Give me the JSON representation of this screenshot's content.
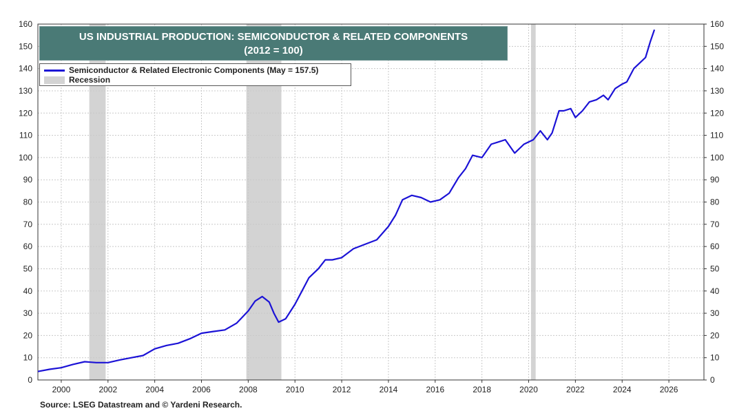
{
  "title_line1": "US INDUSTRIAL PRODUCTION: SEMICONDUCTOR & RELATED COMPONENTS",
  "title_line2": "(2012 = 100)",
  "legend": {
    "series_label": "Semiconductor & Related Electronic Components (May  = 157.5)",
    "recession_label": "Recession"
  },
  "source": "Source: LSEG Datastream and © Yardeni Research.",
  "colors": {
    "series": "#1b12d6",
    "recession": "#d3d3d3",
    "title_bg": "#4a7a76",
    "grid": "#c8c8c8"
  },
  "chart_data": {
    "type": "line",
    "title": "US INDUSTRIAL PRODUCTION: SEMICONDUCTOR & RELATED COMPONENTS",
    "subtitle": "(2012 = 100)",
    "xlim": [
      1999,
      2027.5
    ],
    "ylim": [
      0,
      160
    ],
    "x_ticks": [
      "2000",
      "2002",
      "2004",
      "2006",
      "2008",
      "2010",
      "2012",
      "2014",
      "2016",
      "2018",
      "2020",
      "2022",
      "2024",
      "2026"
    ],
    "y_ticks": [
      "0",
      "10",
      "20",
      "30",
      "40",
      "50",
      "60",
      "70",
      "80",
      "90",
      "100",
      "110",
      "120",
      "130",
      "140",
      "150",
      "160"
    ],
    "grid": true,
    "legend_position": "top-left",
    "recessions": [
      [
        2001.2,
        2001.9
      ],
      [
        2007.92,
        2009.42
      ],
      [
        2020.1,
        2020.3
      ]
    ],
    "series": [
      {
        "name": "Semiconductor & Related Electronic Components (May  = 157.5)",
        "x": [
          1999.0,
          1999.5,
          2000.0,
          2000.5,
          2001.0,
          2001.5,
          2002.0,
          2002.5,
          2003.0,
          2003.5,
          2004.0,
          2004.5,
          2005.0,
          2005.5,
          2006.0,
          2006.5,
          2007.0,
          2007.5,
          2008.0,
          2008.3,
          2008.6,
          2008.9,
          2009.1,
          2009.3,
          2009.6,
          2010.0,
          2010.3,
          2010.6,
          2011.0,
          2011.3,
          2011.6,
          2012.0,
          2012.5,
          2013.0,
          2013.5,
          2014.0,
          2014.3,
          2014.6,
          2015.0,
          2015.4,
          2015.8,
          2016.2,
          2016.6,
          2017.0,
          2017.3,
          2017.6,
          2018.0,
          2018.4,
          2018.7,
          2019.0,
          2019.4,
          2019.8,
          2020.0,
          2020.2,
          2020.5,
          2020.8,
          2021.0,
          2021.3,
          2021.5,
          2021.8,
          2022.0,
          2022.3,
          2022.6,
          2022.9,
          2023.2,
          2023.4,
          2023.7,
          2024.0,
          2024.2,
          2024.5,
          2024.8,
          2025.0,
          2025.2,
          2025.38
        ],
        "values": [
          3.8,
          4.8,
          5.5,
          7.0,
          8.2,
          7.8,
          7.8,
          9.0,
          10.0,
          11.0,
          14.0,
          15.5,
          16.5,
          18.5,
          21.0,
          21.8,
          22.5,
          25.5,
          31.0,
          35.5,
          37.5,
          35.0,
          30.0,
          26.0,
          27.5,
          34.0,
          40.0,
          46.0,
          50.0,
          54.0,
          54.0,
          55.0,
          59.0,
          61.0,
          63.0,
          69.0,
          74.0,
          81.0,
          83.0,
          82.0,
          80.0,
          81.0,
          84.0,
          91.0,
          95.0,
          101.0,
          100.0,
          106.0,
          107.0,
          108.0,
          102.0,
          106.0,
          107.0,
          108.0,
          112.0,
          108.0,
          111.0,
          121.0,
          121.0,
          122.0,
          118.0,
          121.0,
          125.0,
          126.0,
          128.0,
          126.0,
          131.0,
          133.0,
          134.0,
          140.0,
          143.0,
          145.0,
          152.0,
          157.5
        ]
      }
    ]
  }
}
